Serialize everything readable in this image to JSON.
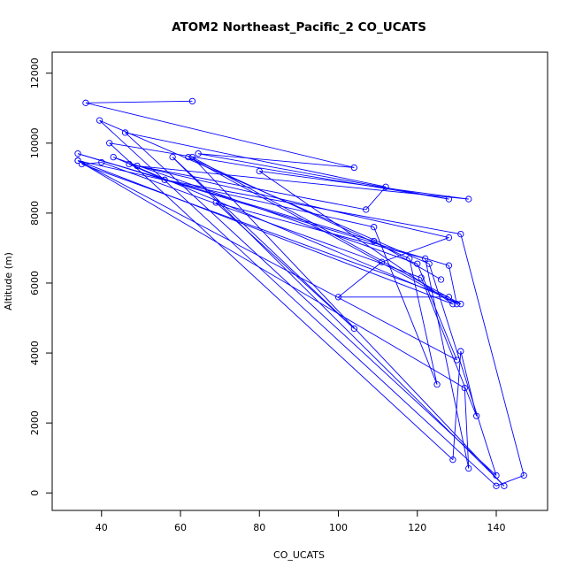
{
  "chart_data": {
    "type": "line",
    "title": "ATOM2 Northeast_Pacific_2 CO_UCATS",
    "xlabel": "CO_UCATS",
    "ylabel": "Altitude (m)",
    "xlim": [
      27.5,
      153
    ],
    "ylim": [
      -500,
      12600
    ],
    "x_ticks": [
      40,
      60,
      80,
      100,
      120,
      140
    ],
    "x_tick_labels": [
      "40",
      "60",
      "80",
      "100",
      "120",
      "140"
    ],
    "y_ticks": [
      0,
      2000,
      4000,
      6000,
      8000,
      10000,
      12000
    ],
    "y_tick_labels": [
      "0",
      "2000",
      "4000",
      "6000",
      "8000",
      "10000",
      "12000"
    ],
    "grid": false,
    "color": "#0000ff",
    "marker": "open-circle",
    "series": [
      {
        "x": [
          63,
          36,
          104,
          64.5,
          128,
          42,
          129,
          131,
          135,
          121,
          40,
          35,
          128,
          100,
          111,
          128,
          47,
          56,
          131,
          147,
          140,
          39.5,
          123,
          140,
          46,
          112,
          107,
          49,
          133,
          80,
          129,
          34,
          130,
          120,
          43,
          131,
          63,
          142,
          58,
          104,
          69,
          122,
          133,
          132,
          34,
          109,
          125,
          118,
          62,
          130,
          128,
          34,
          109,
          126
        ],
        "y": [
          11200,
          11150,
          9300,
          9700,
          8400,
          10000,
          950,
          4050,
          2200,
          6150,
          9450,
          9400,
          5600,
          5600,
          6600,
          7300,
          9400,
          8950,
          7400,
          500,
          200,
          10650,
          6550,
          500,
          10300,
          8750,
          8100,
          9350,
          8400,
          9200,
          5400,
          9500,
          3800,
          6550,
          9600,
          5400,
          9600,
          200,
          9600,
          4700,
          8300,
          6700,
          700,
          3000,
          9500,
          7600,
          3100,
          6700,
          9600,
          5400,
          6500,
          9700,
          7200,
          6100
        ]
      }
    ]
  }
}
